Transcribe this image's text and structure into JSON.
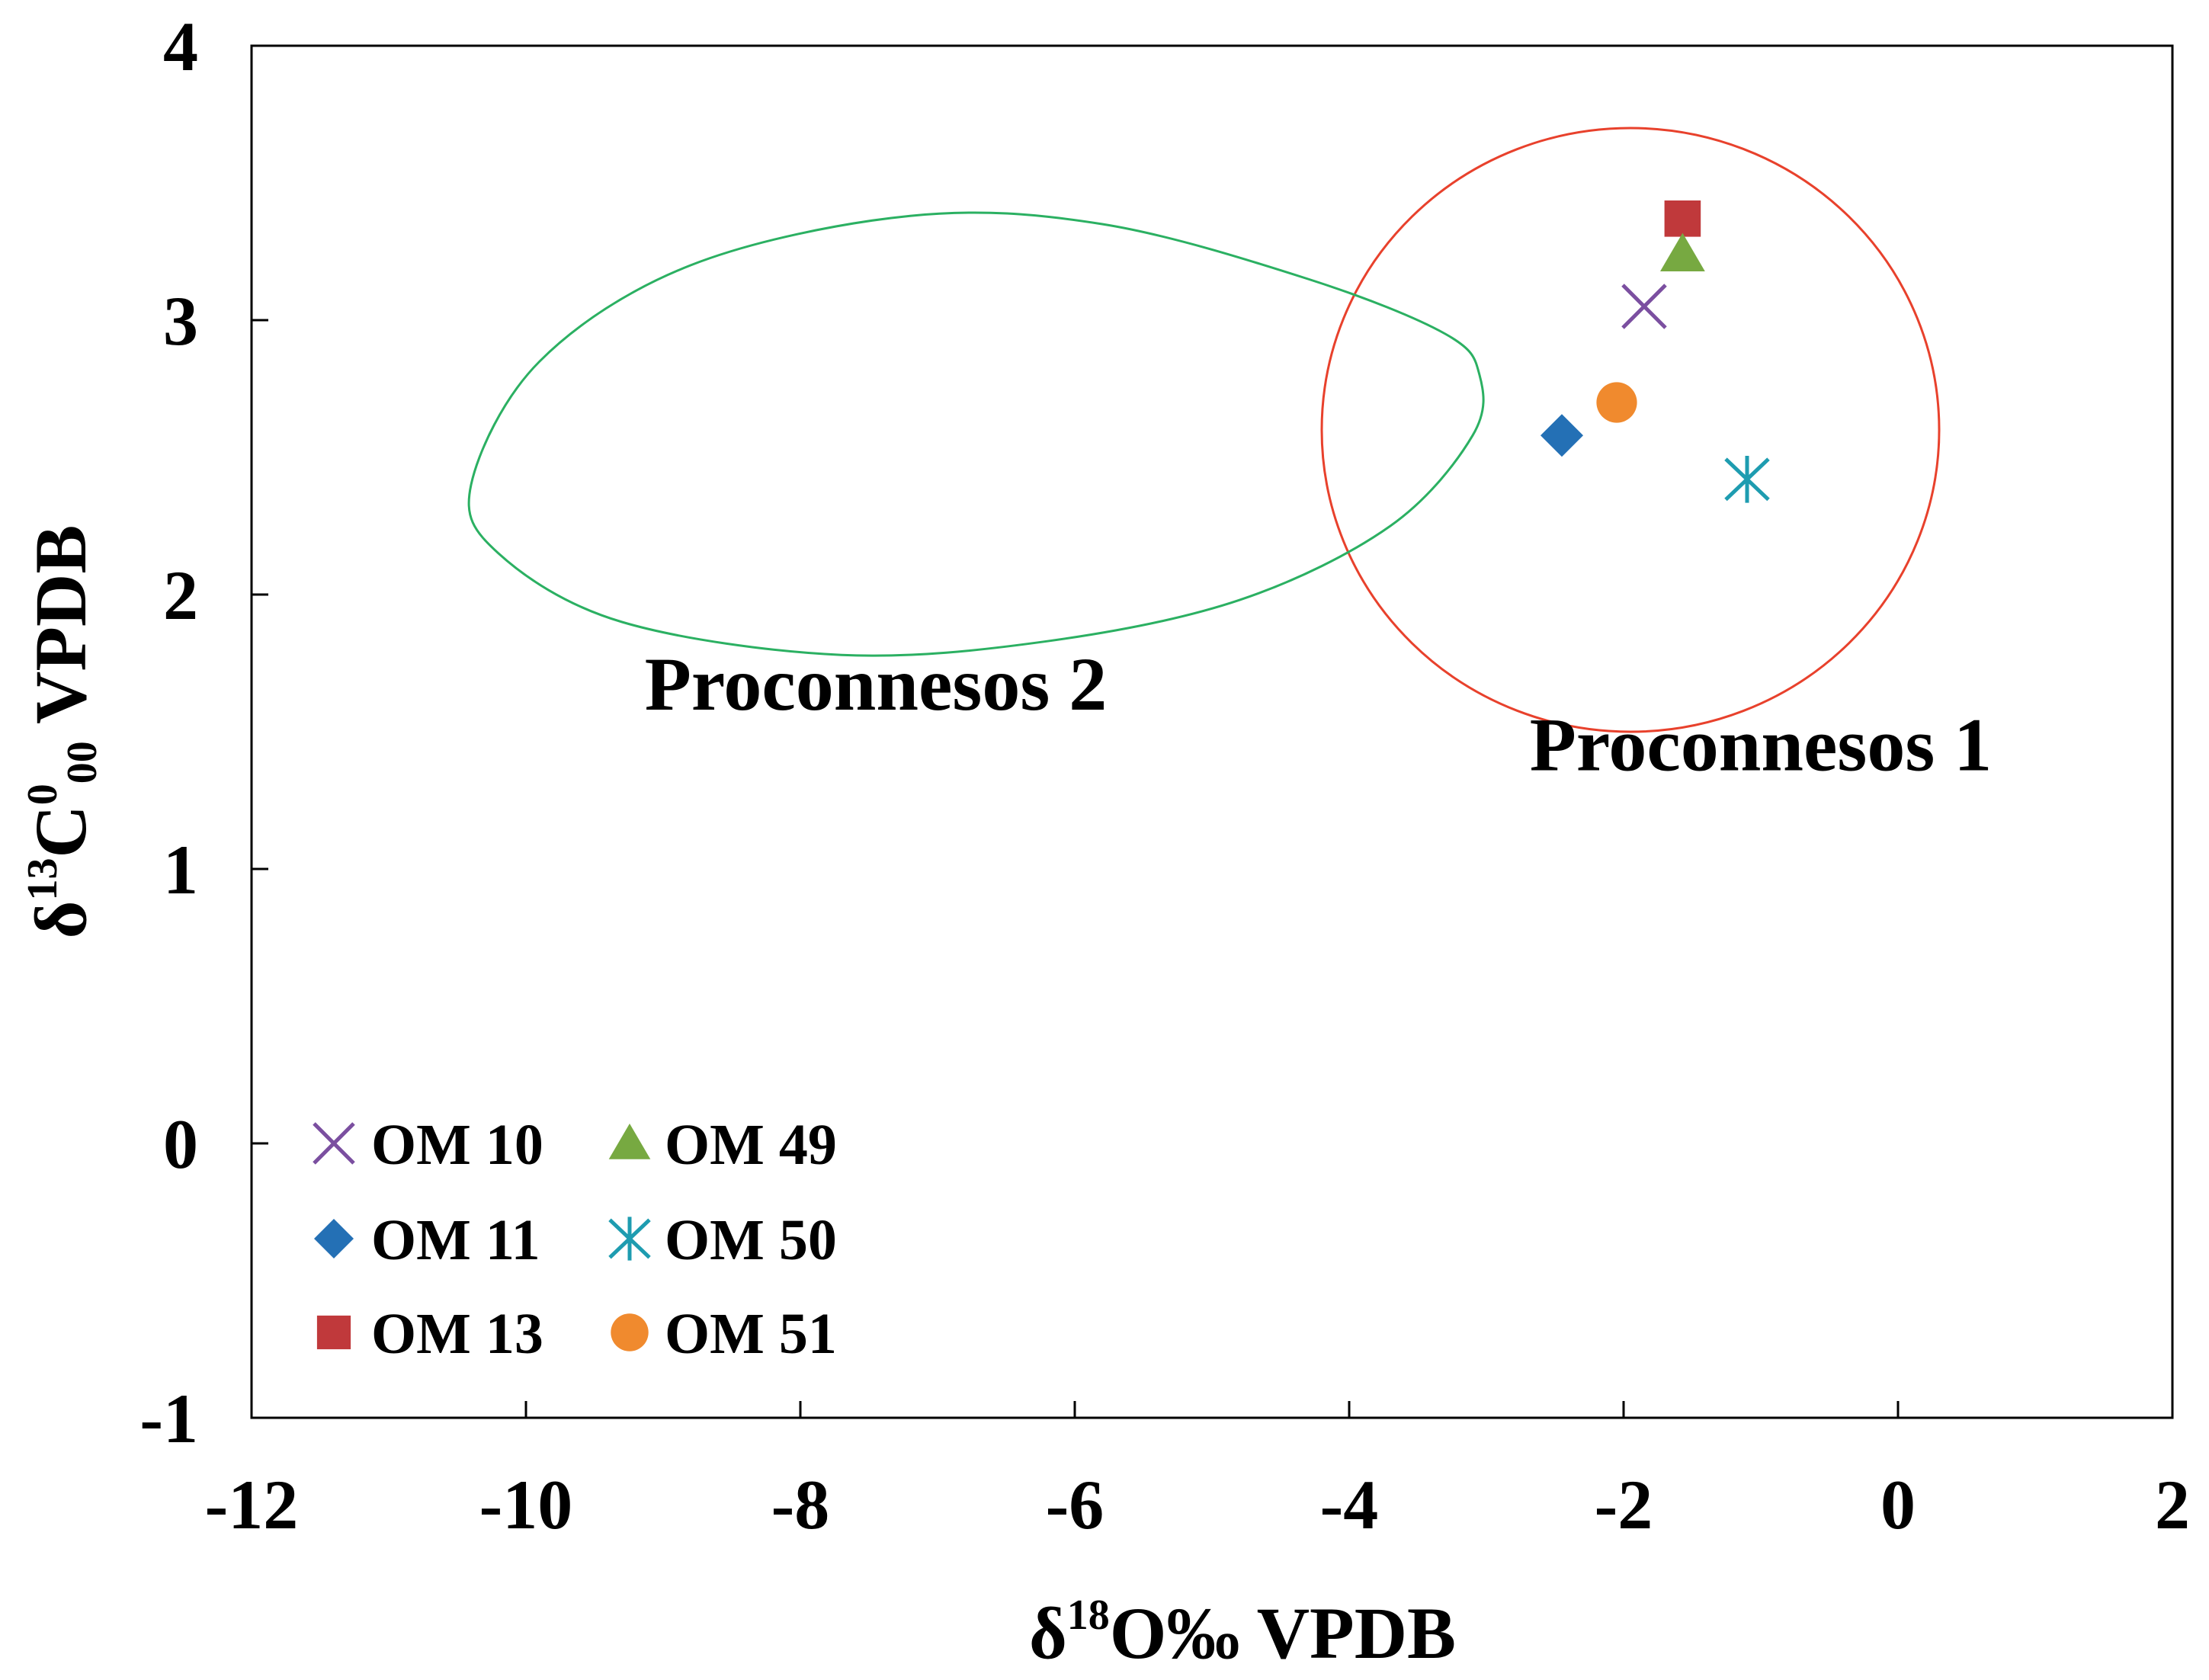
{
  "chart_data": {
    "type": "scatter",
    "title": "",
    "xlabel": {
      "prefix": "δ",
      "sup": "18",
      "main": "O‰ VPDB"
    },
    "ylabel": {
      "prefix": "δ",
      "sup": "13",
      "main": "C",
      "sup2": "0",
      "sub2": "00",
      "tail": " VPDB"
    },
    "xlim": [
      -12,
      2
    ],
    "ylim": [
      -1,
      4
    ],
    "xticks": [
      -12,
      -10,
      -8,
      -6,
      -4,
      -2,
      0,
      2
    ],
    "yticks": [
      -1,
      0,
      1,
      2,
      3,
      4
    ],
    "xtick_labels": [
      "-12",
      "-10",
      "-8",
      "-6",
      "-4",
      "-2",
      "0",
      "2"
    ],
    "ytick_labels": [
      "-1",
      "0",
      "1",
      "2",
      "3",
      "4"
    ],
    "grid": false,
    "legend_position": "bottom-left",
    "series": [
      {
        "name": "OM 10",
        "marker": "x",
        "color": "#7B4FA0",
        "x": -1.85,
        "y": 3.05
      },
      {
        "name": "OM 11",
        "marker": "diamond",
        "color": "#2470B5",
        "x": -2.45,
        "y": 2.58
      },
      {
        "name": "OM 13",
        "marker": "square",
        "color": "#C0393B",
        "x": -1.57,
        "y": 3.37
      },
      {
        "name": "OM 49",
        "marker": "triangle",
        "color": "#77A941",
        "x": -1.57,
        "y": 3.24
      },
      {
        "name": "OM 50",
        "marker": "asterisk",
        "color": "#1E9CB0",
        "x": -1.1,
        "y": 2.42
      },
      {
        "name": "OM 51",
        "marker": "circle",
        "color": "#F08A2E",
        "x": -2.05,
        "y": 2.7
      }
    ],
    "regions": [
      {
        "name": "Proconnesos 1",
        "shape": "ellipse",
        "color": "#E8412C",
        "cx": -1.95,
        "cy": 2.6,
        "rx": 2.25,
        "ry": 1.1
      },
      {
        "name": "Proconnesos 2",
        "shape": "closed-curve",
        "color": "#2BB062",
        "outline": [
          [
            -10.4,
            2.4
          ],
          [
            -9.9,
            2.85
          ],
          [
            -8.8,
            3.2
          ],
          [
            -7.2,
            3.38
          ],
          [
            -5.8,
            3.35
          ],
          [
            -4.3,
            3.15
          ],
          [
            -3.3,
            2.95
          ],
          [
            -3.05,
            2.8
          ],
          [
            -3.1,
            2.58
          ],
          [
            -3.7,
            2.25
          ],
          [
            -4.8,
            1.98
          ],
          [
            -6.2,
            1.83
          ],
          [
            -7.7,
            1.78
          ],
          [
            -9.3,
            1.9
          ],
          [
            -10.2,
            2.15
          ]
        ]
      }
    ],
    "annotations": [
      {
        "text": "Proconnesos 2",
        "x": -7.45,
        "y": 1.58
      },
      {
        "text": "Proconnesos 1",
        "x": -1.0,
        "y": 1.36
      }
    ]
  }
}
